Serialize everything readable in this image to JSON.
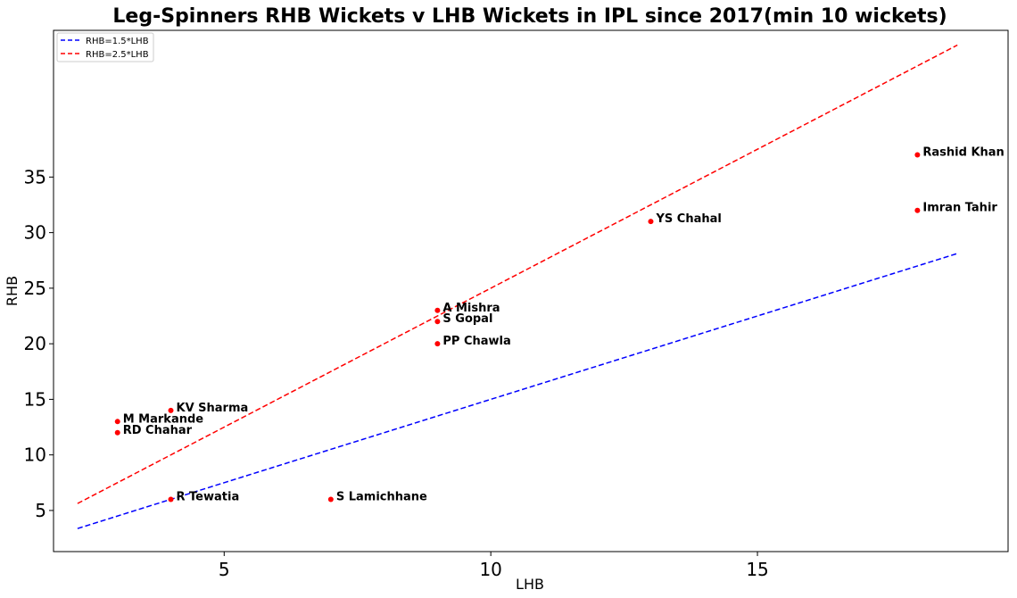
{
  "chart_data": {
    "type": "scatter",
    "title": "Leg-Spinners RHB Wickets v LHB Wickets in IPL since 2017(min 10 wickets)",
    "xlabel": "LHB",
    "ylabel": "RHB",
    "xlim": [
      1.8,
      19.7
    ],
    "ylim": [
      1.3,
      48.2
    ],
    "xticks": [
      5,
      10,
      15
    ],
    "yticks": [
      5,
      10,
      15,
      20,
      25,
      30,
      35
    ],
    "grid": false,
    "legend_position": "top-left",
    "point_color": "#ff0000",
    "points": [
      {
        "label": "Rashid Khan",
        "x": 18,
        "y": 37
      },
      {
        "label": "Imran Tahir",
        "x": 18,
        "y": 32
      },
      {
        "label": "YS Chahal",
        "x": 13,
        "y": 31
      },
      {
        "label": "A Mishra",
        "x": 9,
        "y": 23
      },
      {
        "label": "S Gopal",
        "x": 9,
        "y": 22
      },
      {
        "label": "PP Chawla",
        "x": 9,
        "y": 20
      },
      {
        "label": "KV Sharma",
        "x": 4,
        "y": 14
      },
      {
        "label": "M Markande",
        "x": 3,
        "y": 13
      },
      {
        "label": "RD Chahar",
        "x": 3,
        "y": 12
      },
      {
        "label": "R Tewatia",
        "x": 4,
        "y": 6
      },
      {
        "label": "S Lamichhane",
        "x": 7,
        "y": 6
      }
    ],
    "lines": [
      {
        "name": "RHB=1.5*LHB",
        "slope": 1.5,
        "x_range": [
          2.25,
          18.75
        ],
        "color": "#0000ff",
        "style": "dashed"
      },
      {
        "name": "RHB=2.5*LHB",
        "slope": 2.5,
        "x_range": [
          2.25,
          18.75
        ],
        "color": "#ff0000",
        "style": "dashed"
      }
    ]
  }
}
